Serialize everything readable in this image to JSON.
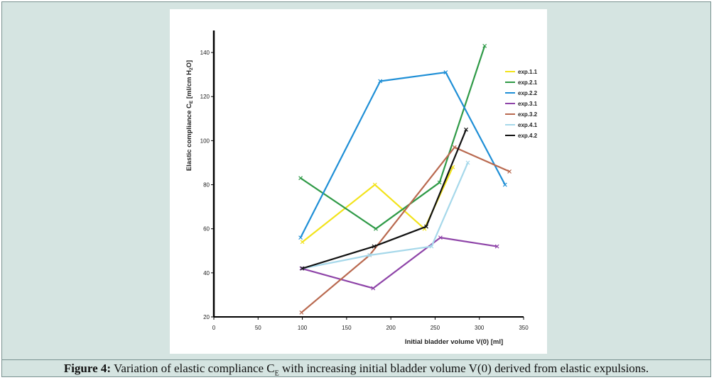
{
  "chart_data": {
    "type": "line",
    "xlabel": "Initial bladder volume V(0) [ml]",
    "ylabel_main": "Elastic compliance C",
    "ylabel_sub": "E",
    "ylabel_unit": " [ml/cm H",
    "ylabel_unit_sub": "2",
    "ylabel_tail": "O]",
    "xlim": [
      0,
      350
    ],
    "ylim": [
      20,
      150
    ],
    "xticks": [
      0,
      50,
      100,
      150,
      200,
      250,
      300,
      350
    ],
    "yticks": [
      20,
      40,
      60,
      80,
      100,
      120,
      140
    ],
    "legend_position": "right",
    "series": [
      {
        "name": "exp.1.1",
        "color": "#f2e31b",
        "x": [
          100,
          182,
          238,
          270
        ],
        "y": [
          54,
          80,
          60,
          88
        ]
      },
      {
        "name": "exp.2.1",
        "color": "#2f9a47",
        "x": [
          98,
          183,
          255,
          306
        ],
        "y": [
          83,
          60,
          81,
          143
        ]
      },
      {
        "name": "exp.2.2",
        "color": "#1f8fd6",
        "x": [
          98,
          188,
          262,
          329
        ],
        "y": [
          56,
          127,
          131,
          80
        ]
      },
      {
        "name": "exp.3.1",
        "color": "#8e44a8",
        "x": [
          99,
          180,
          256,
          320
        ],
        "y": [
          42,
          33,
          56,
          52
        ]
      },
      {
        "name": "exp.3.2",
        "color": "#b9694f",
        "x": [
          99,
          176,
          272,
          334
        ],
        "y": [
          22,
          48,
          97,
          86
        ]
      },
      {
        "name": "exp.4.1",
        "color": "#a6d8ea",
        "x": [
          100,
          176,
          246,
          287
        ],
        "y": [
          42,
          48,
          52,
          90
        ]
      },
      {
        "name": "exp.4.2",
        "color": "#111111",
        "x": [
          100,
          181,
          240,
          285
        ],
        "y": [
          42,
          52,
          61,
          105
        ]
      }
    ]
  },
  "caption": {
    "label": "Figure 4:",
    "text_before": " Variation of elastic compliance C",
    "sub": "E",
    "text_after": " with increasing initial bladder volume V(0) derived from elastic expulsions."
  }
}
